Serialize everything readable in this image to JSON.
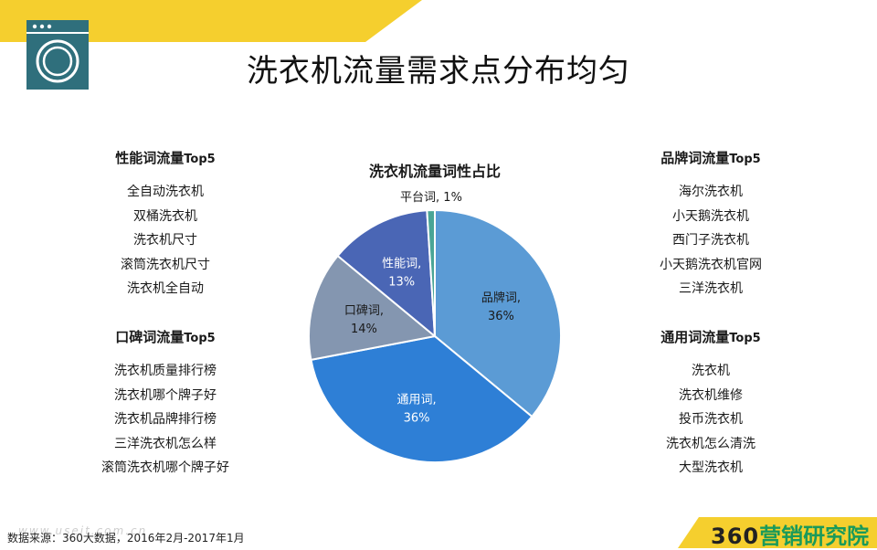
{
  "page": {
    "title": "洗衣机流量需求点分布均匀",
    "source": "数据来源：360大数据，2016年2月-2017年1月",
    "watermark": "www.useit.com.cn",
    "brand_number": "360",
    "brand_name": "营销研究院"
  },
  "colors": {
    "accent_yellow": "#f5cf2e",
    "logo_teal": "#2f6f7c",
    "brand_green": "#1a9a5a"
  },
  "icons": {
    "logo": "washing-machine-icon"
  },
  "lists": {
    "performance": {
      "heading": "性能词流量",
      "suffix": "Top5",
      "items": [
        "全自动洗衣机",
        "双桶洗衣机",
        "洗衣机尺寸",
        "滚筒洗衣机尺寸",
        "洗衣机全自动"
      ]
    },
    "reputation": {
      "heading": "口碑词流量",
      "suffix": "Top5",
      "items": [
        "洗衣机质量排行榜",
        "洗衣机哪个牌子好",
        "洗衣机品牌排行榜",
        "三洋洗衣机怎么样",
        "滚筒洗衣机哪个牌子好"
      ]
    },
    "brand": {
      "heading": "品牌词流量",
      "suffix": "Top5",
      "items": [
        "海尔洗衣机",
        "小天鹅洗衣机",
        "西门子洗衣机",
        "小天鹅洗衣机官网",
        "三洋洗衣机"
      ]
    },
    "general": {
      "heading": "通用词流量",
      "suffix": "Top5",
      "items": [
        "洗衣机",
        "洗衣机维修",
        "投币洗衣机",
        "洗衣机怎么清洗",
        "大型洗衣机"
      ]
    }
  },
  "chart_data": {
    "type": "pie",
    "title": "洗衣机流量词性占比",
    "legend": "none",
    "start": "top",
    "direction": "clockwise",
    "slices": [
      {
        "label": "品牌词",
        "value": 36,
        "display": "36%",
        "color": "#5b9bd5"
      },
      {
        "label": "通用词",
        "value": 36,
        "display": "36%",
        "color": "#2e7fd6"
      },
      {
        "label": "口碑词",
        "value": 14,
        "display": "14%",
        "color": "#8496b0"
      },
      {
        "label": "性能词",
        "value": 13,
        "display": "13%",
        "color": "#4a66b5"
      },
      {
        "label": "平台词",
        "value": 1,
        "display": "1%",
        "color": "#4aa596"
      }
    ]
  }
}
